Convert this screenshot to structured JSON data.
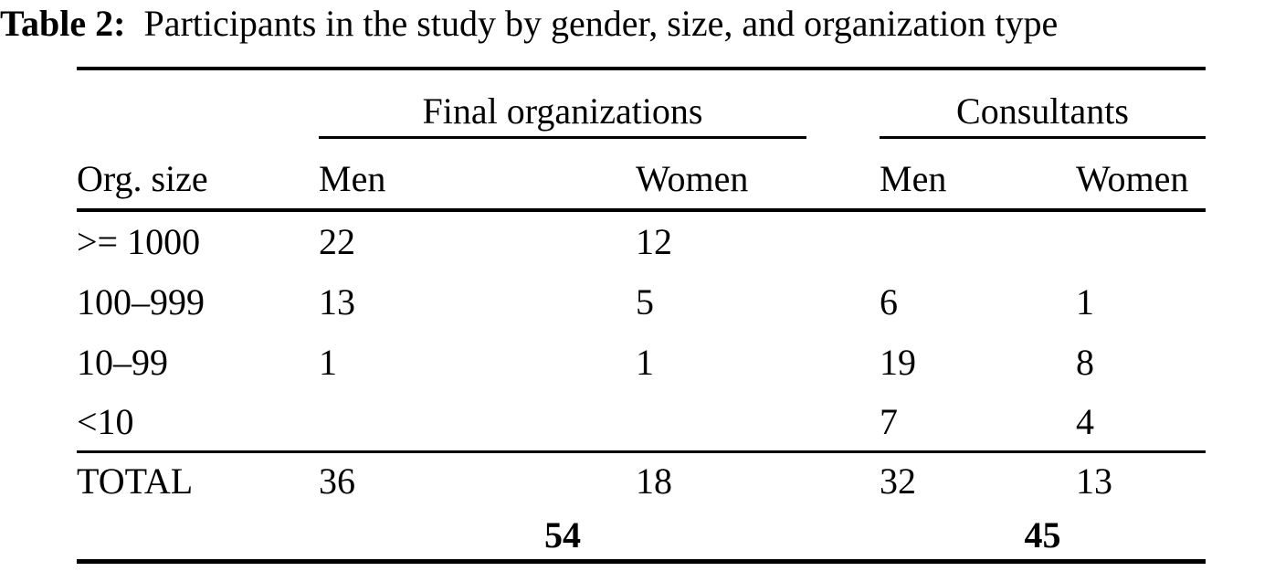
{
  "caption": {
    "label": "Table 2:",
    "text": "Participants in the study by gender, size, and organization type"
  },
  "table": {
    "groups": [
      {
        "label": "Final organizations"
      },
      {
        "label": "Consultants"
      }
    ],
    "columns": [
      "Org. size",
      "Men",
      "Women",
      "Men",
      "Women"
    ],
    "rows": [
      [
        ">= 1000",
        "22",
        "12",
        "",
        ""
      ],
      [
        "100–999",
        "13",
        "5",
        "6",
        "1"
      ],
      [
        "10–99",
        "1",
        "1",
        "19",
        "8"
      ],
      [
        "<10",
        "",
        "",
        "7",
        "4"
      ]
    ],
    "total_row": [
      "TOTAL",
      "36",
      "18",
      "32",
      "13"
    ],
    "group_totals": [
      "54",
      "45"
    ]
  }
}
